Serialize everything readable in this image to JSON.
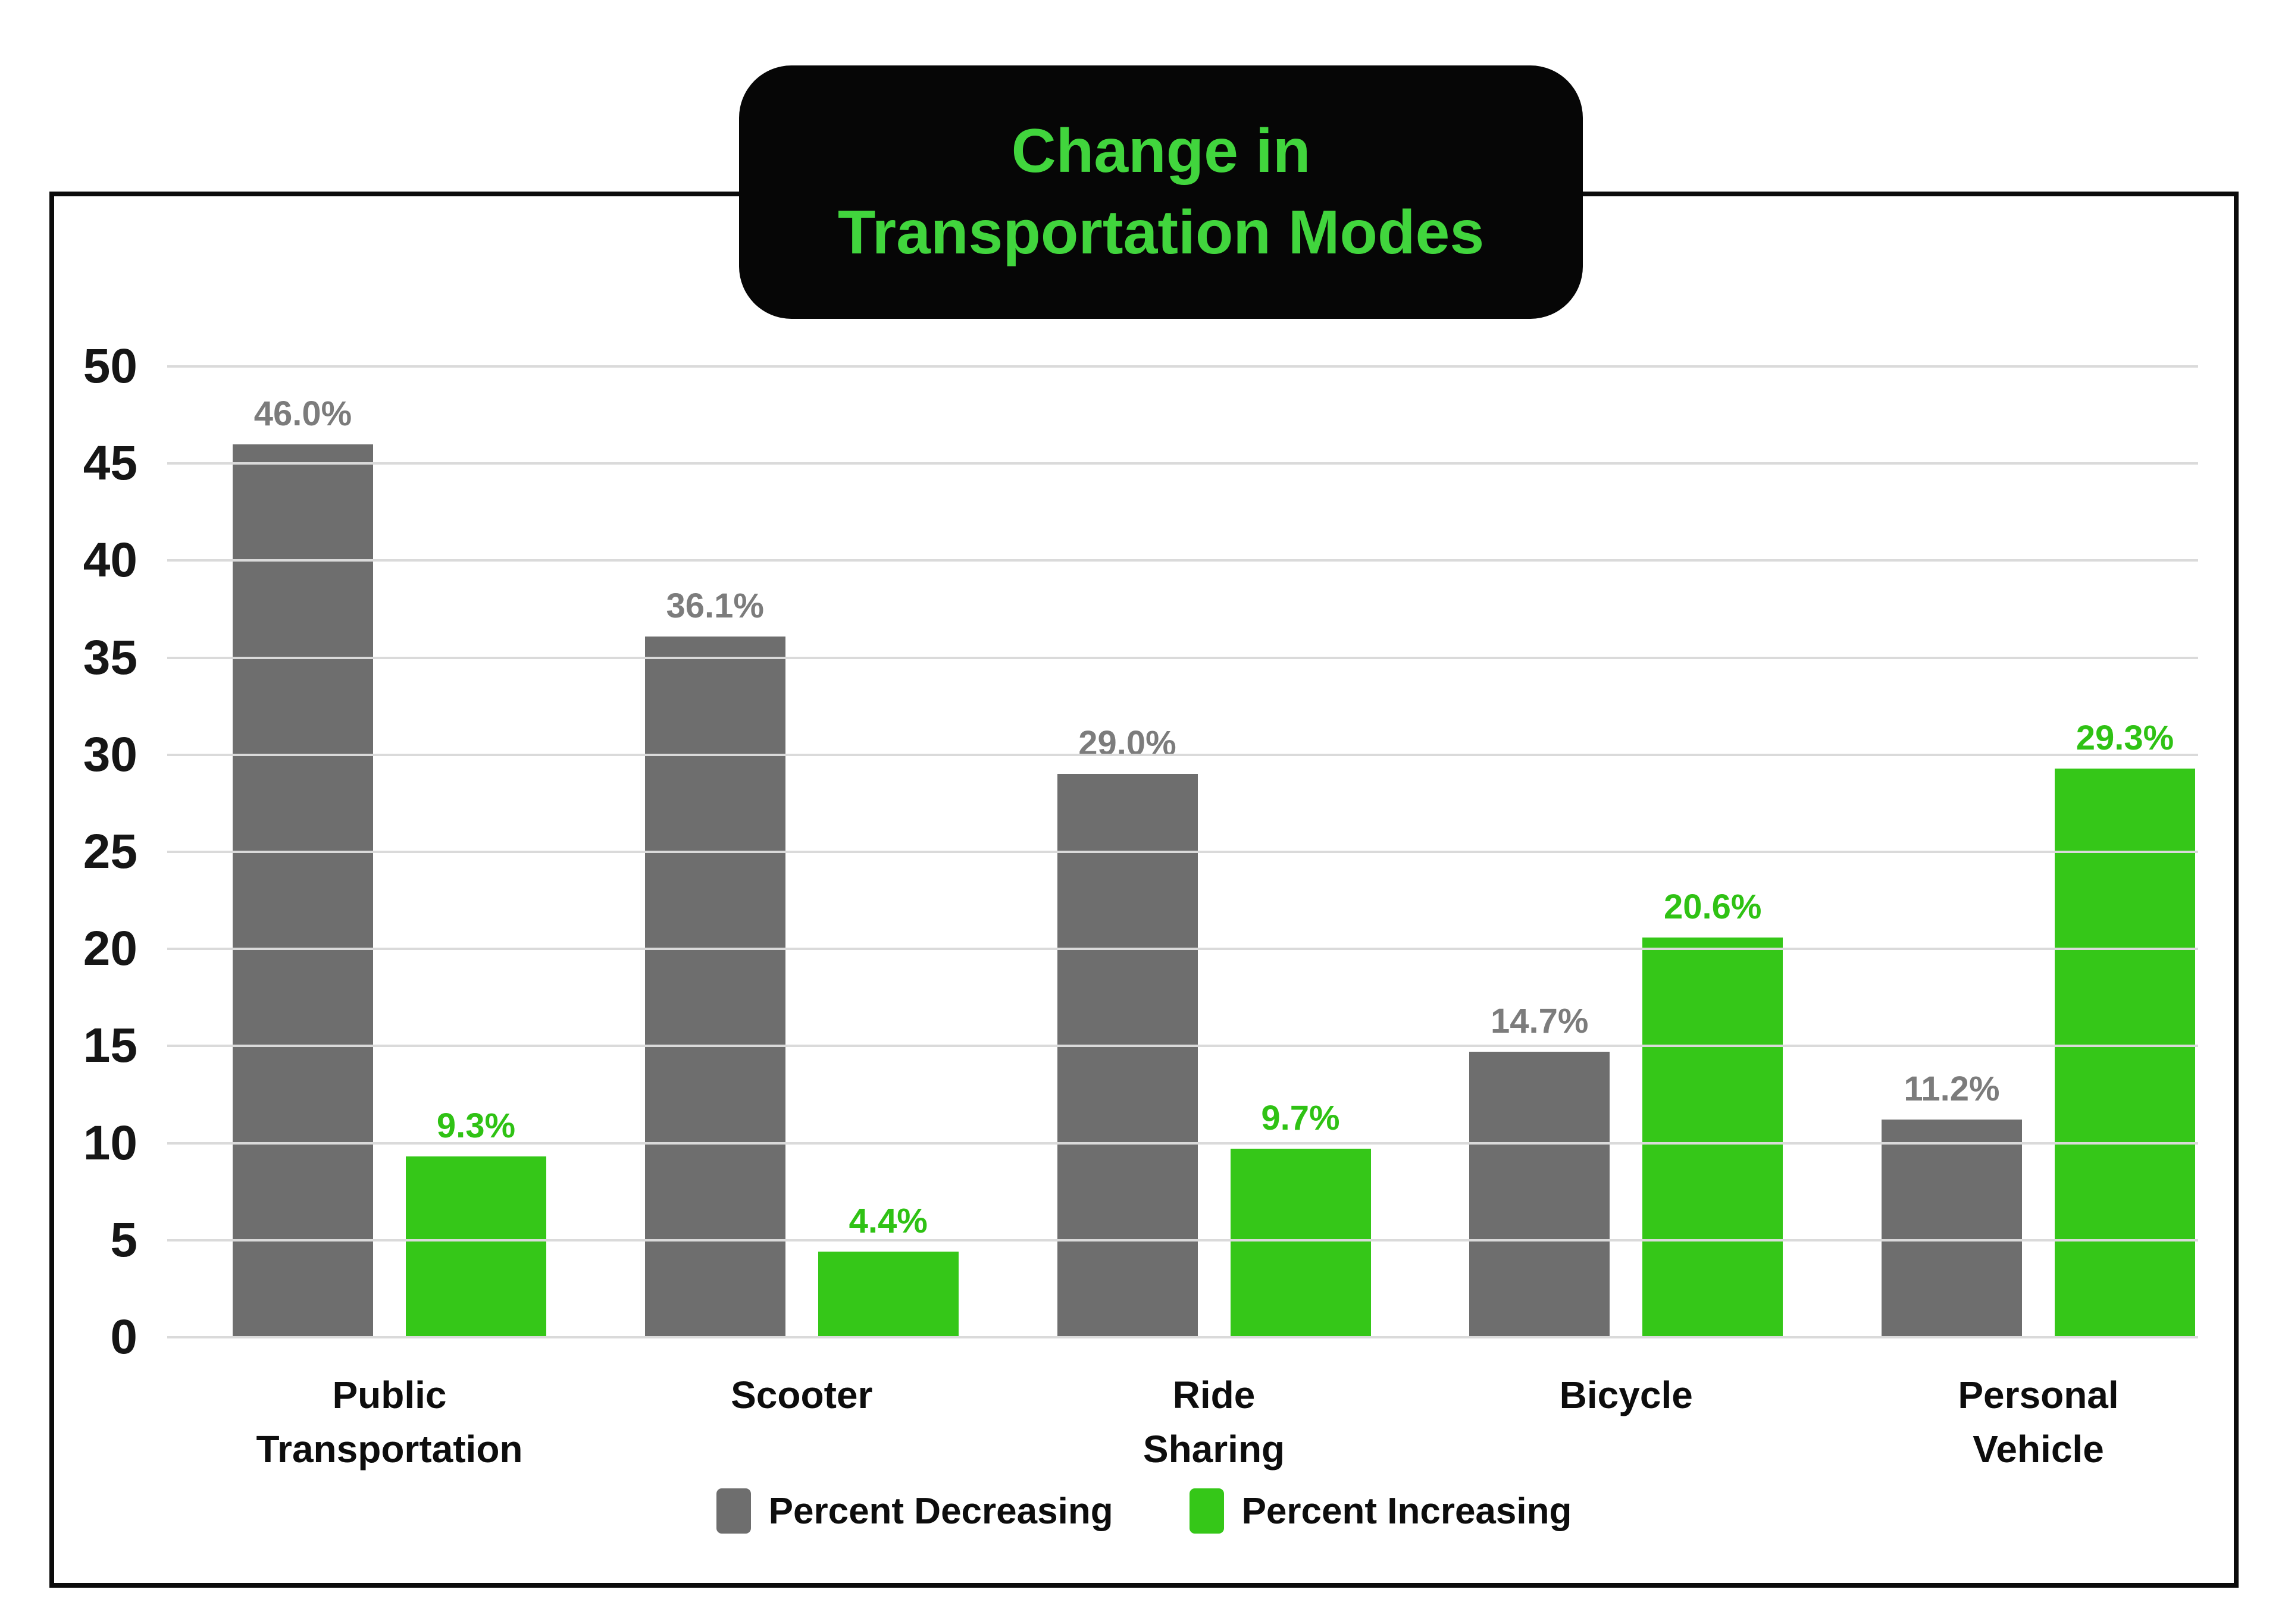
{
  "title": "Change in Transportation Modes",
  "title_lines": [
    "Change in",
    "Transportation Modes"
  ],
  "colors": {
    "background": "#ffffff",
    "frame_border": "#0b0b0b",
    "title_box_background": "#060606",
    "title_text_green": "#41d53d",
    "gridline": "#dadada",
    "axis_text": "#161616",
    "decreasing_gray": "#6e6e6e",
    "decreasing_label_gray": "#7c7c7c",
    "increasing_green": "#35c718",
    "increasing_label_green": "#2fc214"
  },
  "chart_data": {
    "type": "bar",
    "title": "Change in Transportation Modes",
    "categories": [
      "Public Transportation",
      "Scooter",
      "Ride Sharing",
      "Bicycle",
      "Personal Vehicle"
    ],
    "category_label_lines": [
      [
        "Public",
        "Transportation"
      ],
      [
        "Scooter"
      ],
      [
        "Ride",
        "Sharing"
      ],
      [
        "Bicycle"
      ],
      [
        "Personal",
        "Vehicle"
      ]
    ],
    "series": [
      {
        "name": "Percent Decreasing",
        "values": [
          46.0,
          36.1,
          29.0,
          14.7,
          11.2
        ],
        "labels": [
          "46.0%",
          "36.1%",
          "29.0%",
          "14.7%",
          "11.2%"
        ],
        "color": "#6e6e6e",
        "label_color": "#7c7c7c"
      },
      {
        "name": "Percent Increasing",
        "values": [
          9.3,
          4.4,
          9.7,
          20.6,
          29.3
        ],
        "labels": [
          "9.3%",
          "4.4%",
          "9.7%",
          "20.6%",
          "29.3%"
        ],
        "color": "#35c718",
        "label_color": "#2fc214"
      }
    ],
    "xlabel": "",
    "ylabel": "",
    "ylim": [
      0,
      50
    ],
    "ytick_step": 5,
    "yticks": [
      0,
      5,
      10,
      15,
      20,
      25,
      30,
      35,
      40,
      45,
      50
    ],
    "grid": true,
    "legend_position": "bottom"
  }
}
